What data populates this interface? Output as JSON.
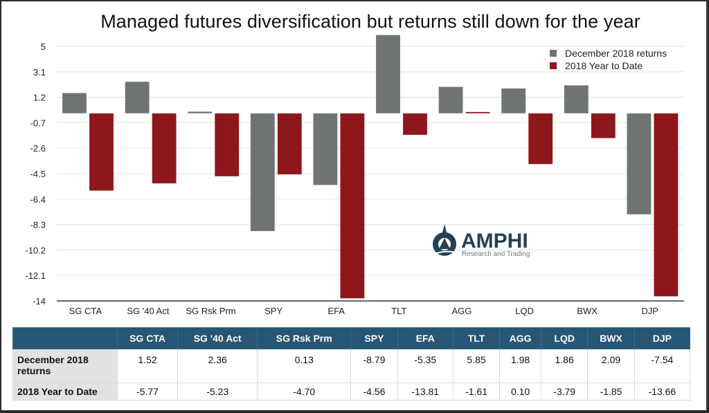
{
  "chart_data": {
    "type": "bar",
    "title": "Managed futures diversification but returns still down for the year",
    "xlabel": "",
    "ylabel": "",
    "ylim": [
      -14,
      5
    ],
    "yticks": [
      5,
      3.1,
      1.2,
      -0.7,
      -2.6,
      -4.5,
      -6.4,
      -8.3,
      -10.2,
      -12.1,
      -14
    ],
    "ytick_labels": [
      "5",
      "3.1",
      "1.2",
      "-0.7",
      "-2.6",
      "-4.5",
      "-6.4",
      "-8.3",
      "-10.2",
      "-12.1",
      "-14"
    ],
    "grid": true,
    "legend_position": "top-right",
    "categories": [
      "SG CTA",
      "SG '40 Act",
      "SG  Rsk Prm",
      "SPY",
      "EFA",
      "TLT",
      "AGG",
      "LQD",
      "BWX",
      "DJP"
    ],
    "series": [
      {
        "name": "December 2018 returns",
        "color": "#6f7472",
        "values": [
          1.52,
          2.36,
          0.13,
          -8.79,
          -5.35,
          5.85,
          1.98,
          1.86,
          2.09,
          -7.54
        ]
      },
      {
        "name": "2018 Year to Date",
        "color": "#8e171c",
        "values": [
          -5.77,
          -5.23,
          -4.7,
          -4.56,
          -13.81,
          -1.61,
          0.1,
          -3.79,
          -1.85,
          -13.66
        ]
      }
    ]
  },
  "watermark": {
    "name": "AMPHI",
    "tagline": "Research and Trading"
  },
  "table": {
    "corner": "",
    "headers": [
      "SG CTA",
      "SG '40 Act",
      "SG  Rsk Prm",
      "SPY",
      "EFA",
      "TLT",
      "AGG",
      "LQD",
      "BWX",
      "DJP"
    ],
    "rows": [
      {
        "label": "December 2018 returns",
        "cells": [
          "1.52",
          "2.36",
          "0.13",
          "-8.79",
          "-5.35",
          "5.85",
          "1.98",
          "1.86",
          "2.09",
          "-7.54"
        ]
      },
      {
        "label": "2018 Year to Date",
        "cells": [
          "-5.77",
          "-5.23",
          "-4.70",
          "-4.56",
          "-13.81",
          "-1.61",
          "0.10",
          "-3.79",
          "-1.85",
          "-13.66"
        ]
      }
    ]
  }
}
